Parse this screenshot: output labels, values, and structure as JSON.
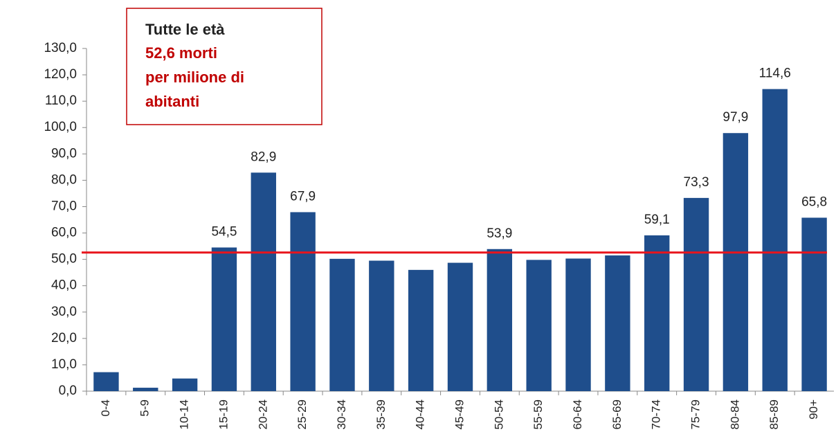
{
  "chart_data": {
    "type": "bar",
    "categories": [
      "0-4",
      "5-9",
      "10-14",
      "15-19",
      "20-24",
      "25-29",
      "30-34",
      "35-39",
      "40-44",
      "45-49",
      "50-54",
      "55-59",
      "60-64",
      "65-69",
      "70-74",
      "75-79",
      "80-84",
      "85-89",
      "90+"
    ],
    "values": [
      7.2,
      1.3,
      4.8,
      54.5,
      82.9,
      67.9,
      50.2,
      49.5,
      46.0,
      48.7,
      53.9,
      49.8,
      50.3,
      51.5,
      59.1,
      73.3,
      97.9,
      114.6,
      65.8
    ],
    "value_labels": [
      null,
      null,
      null,
      "54,5",
      "82,9",
      "67,9",
      null,
      null,
      null,
      null,
      "53,9",
      null,
      null,
      null,
      "59,1",
      "73,3",
      "97,9",
      "114,6",
      "65,8"
    ],
    "color": "#1f4e8c",
    "ylim": [
      0,
      130
    ],
    "yticks": [
      {
        "value": 0,
        "label": "0,0"
      },
      {
        "value": 10,
        "label": "10,0"
      },
      {
        "value": 20,
        "label": "20,0"
      },
      {
        "value": 30,
        "label": "30,0"
      },
      {
        "value": 40,
        "label": "40,0"
      },
      {
        "value": 50,
        "label": "50,0"
      },
      {
        "value": 60,
        "label": "60,0"
      },
      {
        "value": 70,
        "label": "70,0"
      },
      {
        "value": 80,
        "label": "80,0"
      },
      {
        "value": 90,
        "label": "90,0"
      },
      {
        "value": 100,
        "label": "100,0"
      },
      {
        "value": 110,
        "label": "110,0"
      },
      {
        "value": 120,
        "label": "120,0"
      },
      {
        "value": 130,
        "label": "130,0"
      }
    ],
    "reference_line": {
      "value": 52.6,
      "color": "#e8141c"
    },
    "annotation": {
      "title": "Tutte le età",
      "lines": [
        "52,6 morti",
        "per milione  di",
        "abitanti"
      ],
      "color": "#c00000"
    }
  }
}
